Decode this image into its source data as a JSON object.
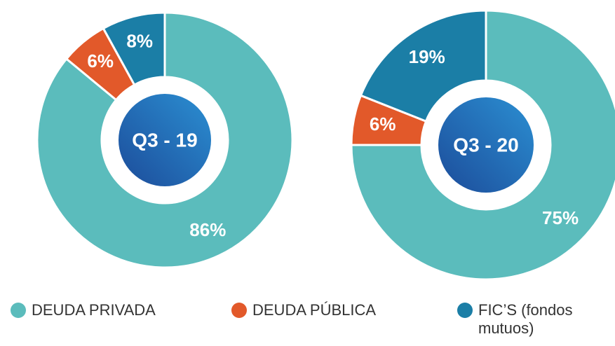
{
  "chart_data": [
    {
      "type": "pie",
      "center_label": "Q3 - 19",
      "categories": [
        "DEUDA PRIVADA",
        "DEUDA PÚBLICA",
        "FIC’S (fondos mutuos)"
      ],
      "values": [
        86,
        6,
        8
      ],
      "value_labels": [
        "86%",
        "6%",
        "8%"
      ],
      "colors": [
        "#5bbcbc",
        "#e2592a",
        "#1b7ea6"
      ]
    },
    {
      "type": "pie",
      "center_label": "Q3 - 20",
      "categories": [
        "DEUDA PRIVADA",
        "DEUDA PÚBLICA",
        "FIC’S (fondos mutuos)"
      ],
      "values": [
        75,
        6,
        19
      ],
      "value_labels": [
        "75%",
        "6%",
        "19%"
      ],
      "colors": [
        "#5bbcbc",
        "#e2592a",
        "#1b7ea6"
      ]
    }
  ]
}
